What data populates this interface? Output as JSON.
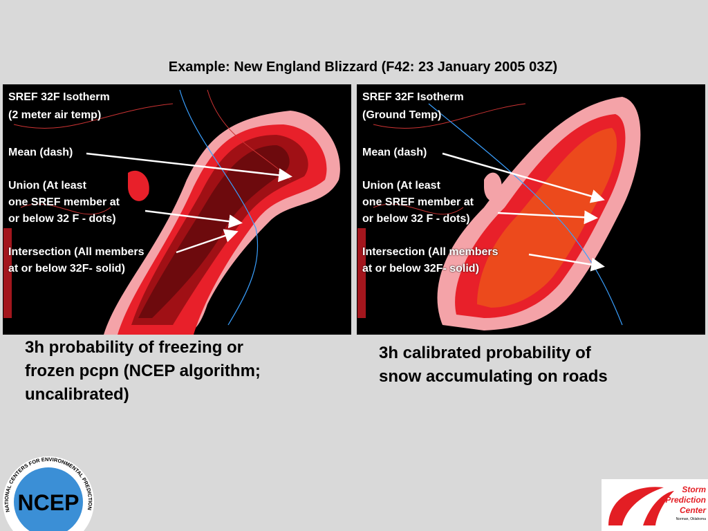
{
  "title": "Example: New England Blizzard (F42: 23 January 2005 03Z)",
  "panels": [
    {
      "heading": [
        "SREF 32F Isotherm",
        "(2 meter air temp)"
      ],
      "mean": "Mean (dash)",
      "union": [
        "Union (At least",
        "one SREF member at",
        "or below 32 F - dots)"
      ],
      "intersection": [
        "Intersection (All members",
        "at or below 32F- solid)"
      ],
      "caption": [
        "3h probability of freezing or",
        "frozen pcpn (NCEP algorithm;",
        "uncalibrated)"
      ]
    },
    {
      "heading": [
        "SREF 32F Isotherm",
        "(Ground Temp)"
      ],
      "mean": "Mean (dash)",
      "union": [
        "Union (At least",
        "one SREF member at",
        "or below 32 F - dots)"
      ],
      "intersection": [
        "Intersection (All members",
        "at or below 32F- solid)"
      ],
      "caption": [
        "3h calibrated probability of",
        "snow accumulating on roads"
      ]
    }
  ],
  "logos": {
    "ncep": "NCEP",
    "ncep_ring": "NATIONAL CENTERS FOR ENVIRONMENTAL PREDICTION",
    "spc": [
      "Storm",
      "Prediction",
      "Center"
    ],
    "spc_place": "Norman, Oklahoma"
  }
}
